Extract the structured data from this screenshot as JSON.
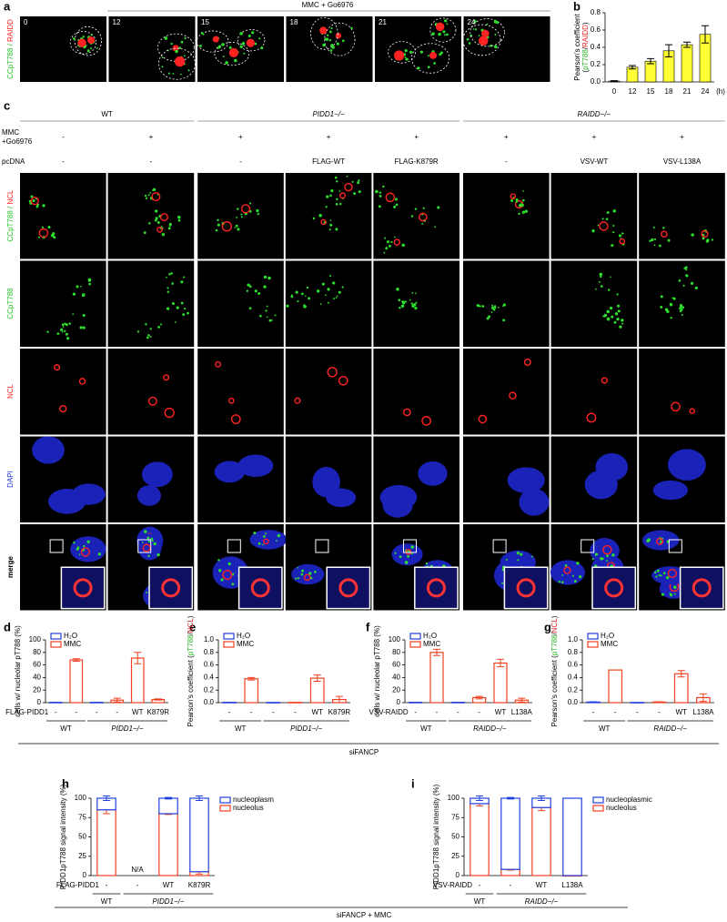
{
  "figure": {
    "panels": [
      "a",
      "b",
      "c",
      "d",
      "e",
      "f",
      "g",
      "h",
      "i"
    ],
    "footers": [
      "siFANCP",
      "siFANCP + MMC"
    ]
  },
  "panel_a": {
    "header": "MMC + Go6976",
    "times": [
      "0",
      "12",
      "15",
      "18",
      "21",
      "24"
    ],
    "label": [
      "CCpT788",
      " / ",
      "RAIDD"
    ]
  },
  "panel_c": {
    "groups": [
      "WT",
      "PIDD1−/−",
      "RAIDD−/−"
    ],
    "row1_label": [
      "MMC",
      "+Go6976"
    ],
    "row1": [
      "-",
      "+",
      "+",
      "+",
      "+",
      "+",
      "+",
      "+"
    ],
    "row2_label": "pcDNA",
    "row2": [
      "-",
      "-",
      "-",
      "FLAG-WT",
      "FLAG-K879R",
      "-",
      "VSV-WT",
      "VSV-L138A"
    ],
    "channels": [
      [
        "CCpT788",
        " / ",
        "NCL"
      ],
      [
        "CCpT788"
      ],
      [
        "NCL"
      ],
      [
        "DAPI"
      ],
      [
        "merge"
      ]
    ],
    "channel_colors": [
      [
        "#22c322",
        "#22c322",
        "#ff2020"
      ],
      [
        "#22c322"
      ],
      [
        "#ff2020"
      ],
      [
        "#2030e0"
      ],
      [
        "#000000"
      ]
    ]
  },
  "chart_data": [
    {
      "type": "bar",
      "ylabel": "Pearson's coefficient",
      "ylabel_sub": [
        {
          "text": "(",
          "color": "#000"
        },
        {
          "text": "pT788",
          "color": "#22b322"
        },
        {
          "text": "/",
          "color": "#000"
        },
        {
          "text": "RAIDD",
          "color": "#e02020"
        },
        {
          "text": ")",
          "color": "#000"
        }
      ],
      "xlabel": "(h)",
      "categories": [
        "0",
        "12",
        "15",
        "18",
        "21",
        "24"
      ],
      "values": [
        0.01,
        0.17,
        0.24,
        0.36,
        0.43,
        0.55
      ],
      "errors": [
        0.005,
        0.02,
        0.03,
        0.07,
        0.03,
        0.1
      ],
      "color": "#ffff33",
      "ylim": [
        0,
        0.8
      ],
      "yticks": [
        {
          "value": 0,
          "label": "0.0"
        },
        0.2,
        0.4,
        0.6,
        {
          "value": 0.8,
          "label": "0.8"
        }
      ]
    },
    {
      "type": "bar",
      "ylabel": "cells w/ nucleolar pT788 (%)",
      "row_label": "FLAG-PIDD1",
      "categories": [
        "-",
        "-",
        "-",
        "-",
        "WT",
        "K879R"
      ],
      "groups": [
        "WT",
        "PIDD1−/−"
      ],
      "legend": "top-left",
      "series": [
        {
          "name": "H₂O",
          "color": "#2040e0",
          "values": [
            0.5,
            null,
            0.5,
            null,
            null,
            null
          ],
          "errors": [
            null,
            null,
            null,
            null,
            null,
            null
          ]
        },
        {
          "name": "MMC",
          "color": "#f04020",
          "values": [
            null,
            68,
            null,
            4,
            71,
            5
          ],
          "errors": [
            null,
            2,
            null,
            3,
            9,
            1
          ]
        }
      ],
      "ylim": [
        0,
        100
      ],
      "yticks": [
        0,
        20,
        40,
        60,
        80,
        100
      ]
    },
    {
      "type": "bar",
      "ylabel": "Pearson's coefficient ",
      "ylabel_sub": [
        {
          "text": "(",
          "color": "#000"
        },
        {
          "text": "pT788",
          "color": "#22b322"
        },
        {
          "text": "/",
          "color": "#000"
        },
        {
          "text": "NCL",
          "color": "#e02020"
        },
        {
          "text": ")",
          "color": "#000"
        }
      ],
      "categories": [
        "-",
        "-",
        "-",
        "-",
        "WT",
        "K879R"
      ],
      "groups": [
        "WT",
        "PIDD1−/−"
      ],
      "legend": "top-left",
      "series": [
        {
          "name": "H₂O",
          "color": "#2040e0",
          "values": [
            0.005,
            null,
            0.003,
            null,
            null,
            null
          ],
          "errors": [
            null,
            null,
            null,
            null,
            null,
            null
          ]
        },
        {
          "name": "MMC",
          "color": "#f04020",
          "values": [
            null,
            0.38,
            null,
            0.005,
            0.39,
            0.05
          ],
          "errors": [
            null,
            0.02,
            null,
            null,
            0.05,
            0.05
          ]
        }
      ],
      "ylim": [
        0,
        1
      ],
      "yticks": [
        {
          "value": 0,
          "label": "0.0"
        },
        0.2,
        0.4,
        0.6,
        0.8,
        {
          "value": 1,
          "label": "1.0"
        }
      ]
    },
    {
      "type": "bar",
      "ylabel": "cells w/ nucleolar pT788 (%)",
      "row_label": "VSV-RAIDD",
      "categories": [
        "-",
        "-",
        "-",
        "-",
        "WT",
        "L138A"
      ],
      "groups": [
        "WT",
        "RAIDD−/−"
      ],
      "legend": "top-left",
      "series": [
        {
          "name": "H₂O",
          "color": "#2040e0",
          "values": [
            0.5,
            null,
            0.5,
            null,
            null,
            null
          ],
          "errors": [
            null,
            null,
            null,
            null,
            null,
            null
          ]
        },
        {
          "name": "MMC",
          "color": "#f04020",
          "values": [
            null,
            80,
            null,
            8,
            63,
            4
          ],
          "errors": [
            null,
            5,
            null,
            2,
            6,
            3
          ]
        }
      ],
      "ylim": [
        0,
        100
      ],
      "yticks": [
        0,
        20,
        40,
        60,
        80,
        100
      ]
    },
    {
      "type": "bar",
      "ylabel": "Pearson's coefficient ",
      "ylabel_sub": [
        {
          "text": "(",
          "color": "#000"
        },
        {
          "text": "pT788",
          "color": "#22b322"
        },
        {
          "text": "/",
          "color": "#000"
        },
        {
          "text": "NCL",
          "color": "#e02020"
        },
        {
          "text": ")",
          "color": "#000"
        }
      ],
      "categories": [
        "-",
        "-",
        "-",
        "-",
        "WT",
        "L138A"
      ],
      "groups": [
        "WT",
        "RAIDD−/−"
      ],
      "legend": "top-left",
      "series": [
        {
          "name": "H₂O",
          "color": "#2040e0",
          "values": [
            0.01,
            null,
            0.003,
            null,
            null,
            null
          ],
          "errors": [
            0.005,
            null,
            null,
            null,
            null,
            null
          ]
        },
        {
          "name": "MMC",
          "color": "#f04020",
          "values": [
            null,
            0.52,
            null,
            0.01,
            0.46,
            0.08
          ],
          "errors": [
            null,
            null,
            null,
            0.005,
            0.05,
            0.06
          ]
        }
      ],
      "ylim": [
        0,
        1
      ],
      "yticks": [
        {
          "value": 0,
          "label": "0.0"
        },
        0.2,
        0.4,
        0.6,
        0.8,
        {
          "value": 1,
          "label": "1.0"
        }
      ]
    },
    {
      "type": "stacked_bar",
      "ylabel": "PIDD1pT788 signal intensity (%)",
      "row_label": "FLAG-PIDD1",
      "annotation": "N/A",
      "categories": [
        "-",
        "-",
        "WT",
        "K879R"
      ],
      "groups": [
        "WT",
        "PIDD1−/−"
      ],
      "legend": "right",
      "series": [
        {
          "name": "nucleoplasm",
          "color": "#2040e0",
          "values": [
            15,
            null,
            20,
            95
          ],
          "errors": [
            3,
            null,
            1,
            3
          ]
        },
        {
          "name": "nucleolus",
          "color": "#f04020",
          "values": [
            85,
            null,
            80,
            5
          ],
          "errors": [
            5,
            null,
            1,
            3
          ]
        }
      ],
      "ylim": [
        0,
        100
      ],
      "yticks": [
        0,
        25,
        50,
        75,
        100
      ]
    },
    {
      "type": "stacked_bar",
      "ylabel": "PIDD1pT788 signal intensity (%)",
      "row_label": "VSV-RAIDD",
      "categories": [
        "-",
        "-",
        "WT",
        "L138A"
      ],
      "groups": [
        "WT",
        "RAIDD−/−"
      ],
      "legend": "right",
      "series": [
        {
          "name": "nucleoplasmic",
          "color": "#2040e0",
          "values": [
            7,
            92,
            12,
            100
          ],
          "errors": [
            3,
            1,
            3,
            null
          ]
        },
        {
          "name": "nucleolus",
          "color": "#f04020",
          "values": [
            93,
            8,
            88,
            0
          ],
          "errors": [
            3,
            1,
            4,
            null
          ]
        }
      ],
      "ylim": [
        0,
        100
      ],
      "yticks": [
        0,
        25,
        50,
        75,
        100
      ]
    }
  ]
}
